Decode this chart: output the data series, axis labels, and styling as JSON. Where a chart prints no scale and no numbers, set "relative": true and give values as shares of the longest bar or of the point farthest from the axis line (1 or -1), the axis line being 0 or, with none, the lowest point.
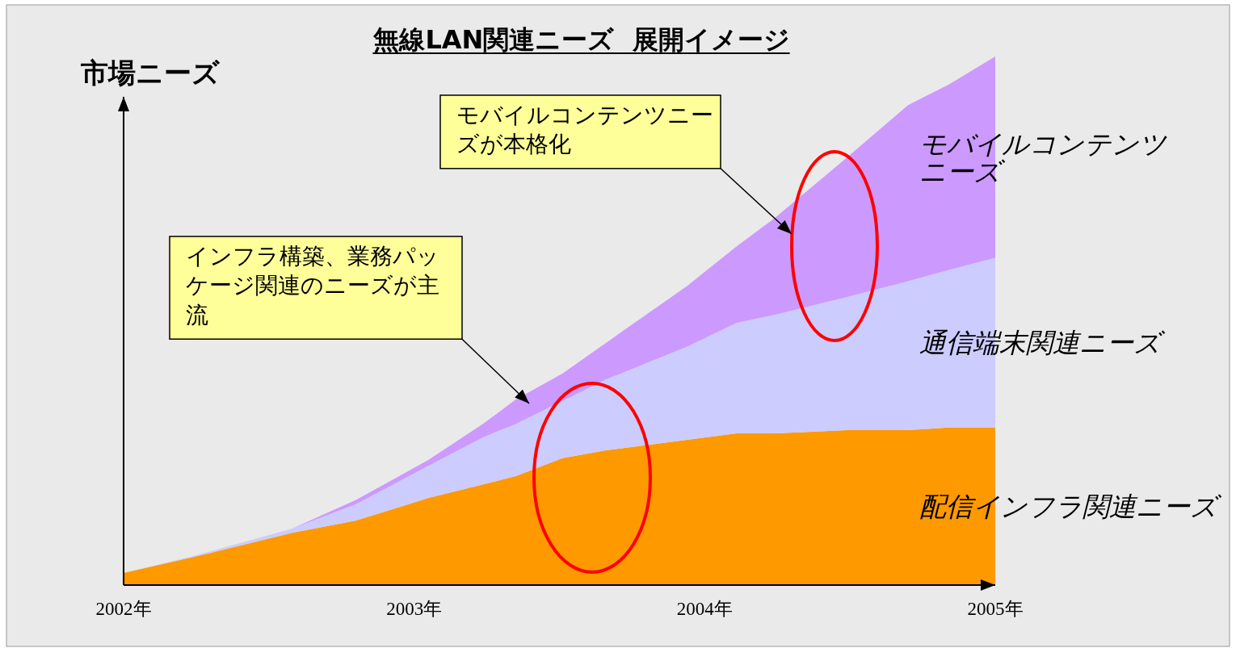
{
  "chart_data": {
    "type": "area",
    "stacked": true,
    "relative": true,
    "title": "無線LAN関連ニーズ  展開イメージ",
    "ylabel": "市場ニーズ",
    "x": [
      2002.0,
      2002.24,
      2002.58,
      2002.8,
      2003.05,
      2003.24,
      2003.35,
      2003.51,
      2003.66,
      2003.94,
      2004.11,
      2004.24,
      2004.49,
      2004.7,
      2004.84,
      2005.0
    ],
    "xlim": [
      2002,
      2005
    ],
    "xticks": [
      {
        "value": 2002,
        "label": "2002年"
      },
      {
        "value": 2003,
        "label": "2003年"
      },
      {
        "value": 2004,
        "label": "2004年"
      },
      {
        "value": 2005,
        "label": "2005年"
      }
    ],
    "series": [
      {
        "name": "配信インフラ関連ニーズ",
        "color": "#ff9900",
        "values": [
          0.023,
          0.053,
          0.099,
          0.122,
          0.165,
          0.191,
          0.206,
          0.24,
          0.255,
          0.275,
          0.287,
          0.287,
          0.293,
          0.293,
          0.298,
          0.298
        ]
      },
      {
        "name": "通信端末関連ニーズ",
        "color": "#ccccff",
        "values": [
          0,
          0.002,
          0.008,
          0.031,
          0.061,
          0.089,
          0.099,
          0.108,
          0.134,
          0.176,
          0.209,
          0.224,
          0.252,
          0.282,
          0.298,
          0.321
        ]
      },
      {
        "name": "モバイルコンテンツニーズ",
        "color": "#cc99ff",
        "values": [
          0,
          0,
          0,
          0.008,
          0.011,
          0.026,
          0.046,
          0.052,
          0.069,
          0.115,
          0.145,
          0.183,
          0.264,
          0.333,
          0.351,
          0.381
        ]
      }
    ],
    "annotations": [
      "モバイルコンテンツニーズが本格化",
      "インフラ構築、業務パッケージ関連のニーズが主流"
    ]
  }
}
